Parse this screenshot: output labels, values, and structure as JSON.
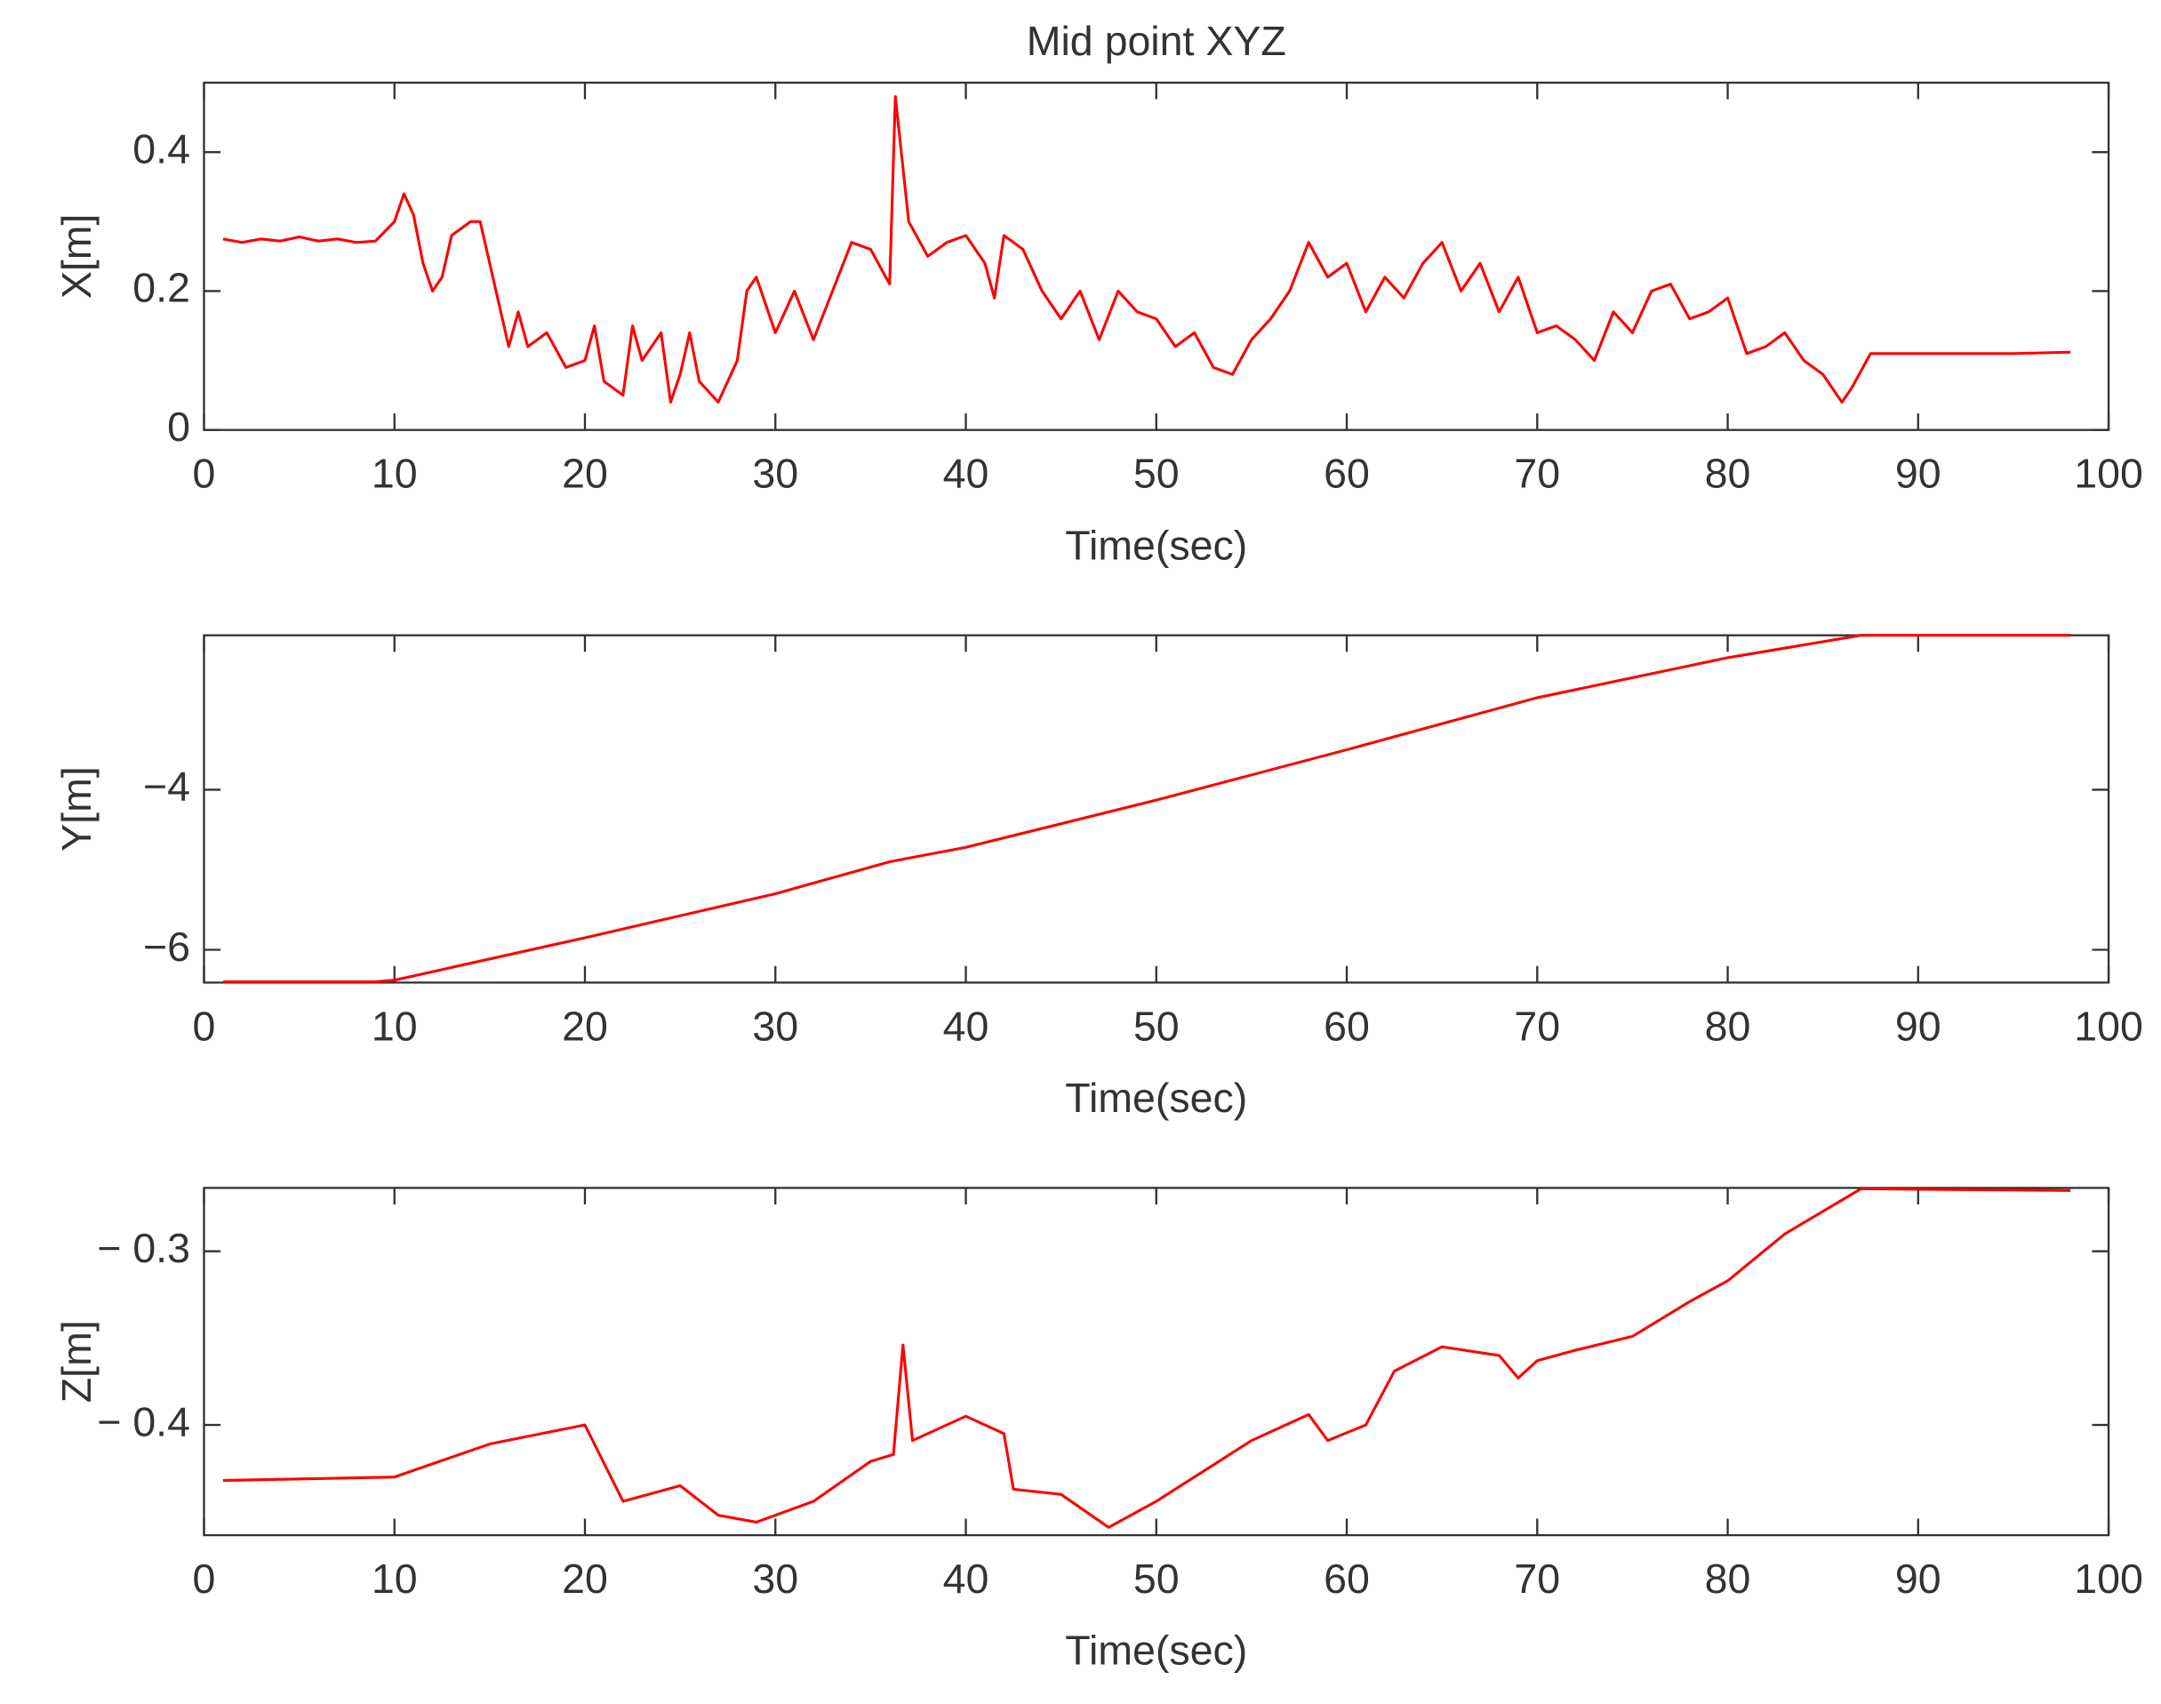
{
  "chart_data": [
    {
      "type": "line",
      "title": "Mid point XYZ",
      "xlabel": "Time(sec)",
      "ylabel": "X[m]",
      "x": [
        1,
        2,
        3,
        4,
        5,
        6,
        7,
        8,
        9,
        10,
        10.5,
        11,
        11.5,
        12,
        12.5,
        13,
        14,
        14.5,
        15,
        16,
        16.5,
        17,
        18,
        19,
        20,
        20.5,
        21,
        22,
        22.5,
        23,
        24,
        24.5,
        25,
        25.5,
        26,
        27,
        28,
        28.5,
        29,
        30,
        31,
        32,
        33,
        34,
        35,
        36,
        36.3,
        37,
        38,
        39,
        40,
        41,
        41.5,
        42,
        43,
        44,
        45,
        46,
        47,
        48,
        49,
        50,
        51,
        52,
        53,
        54,
        55,
        56,
        57,
        58,
        59,
        60,
        61,
        62,
        63,
        64,
        65,
        66,
        67,
        68,
        69,
        70,
        71,
        72,
        73,
        74,
        75,
        76,
        77,
        78,
        79,
        80,
        81,
        82,
        83,
        84,
        85,
        86,
        86.5,
        87.5,
        90,
        95,
        98
      ],
      "series": [
        {
          "color": "#ff0000",
          "values": [
            0.275,
            0.27,
            0.275,
            0.272,
            0.278,
            0.272,
            0.275,
            0.27,
            0.272,
            0.3,
            0.34,
            0.31,
            0.24,
            0.2,
            0.22,
            0.28,
            0.3,
            0.3,
            0.24,
            0.12,
            0.17,
            0.12,
            0.14,
            0.09,
            0.1,
            0.15,
            0.07,
            0.05,
            0.15,
            0.1,
            0.14,
            0.04,
            0.08,
            0.14,
            0.07,
            0.04,
            0.1,
            0.2,
            0.22,
            0.14,
            0.2,
            0.13,
            0.2,
            0.27,
            0.26,
            0.21,
            0.48,
            0.3,
            0.25,
            0.27,
            0.28,
            0.24,
            0.19,
            0.28,
            0.26,
            0.2,
            0.16,
            0.2,
            0.13,
            0.2,
            0.17,
            0.16,
            0.12,
            0.14,
            0.09,
            0.08,
            0.13,
            0.16,
            0.2,
            0.27,
            0.22,
            0.24,
            0.17,
            0.22,
            0.19,
            0.24,
            0.27,
            0.2,
            0.24,
            0.17,
            0.22,
            0.14,
            0.15,
            0.13,
            0.1,
            0.17,
            0.14,
            0.2,
            0.21,
            0.16,
            0.17,
            0.19,
            0.11,
            0.12,
            0.14,
            0.1,
            0.08,
            0.04,
            0.06,
            0.11,
            0.11,
            0.11,
            0.112
          ]
        }
      ],
      "xlim": [
        0,
        100
      ],
      "xticks": [
        0,
        10,
        20,
        30,
        40,
        50,
        60,
        70,
        80,
        90,
        100
      ],
      "ylim": [
        0,
        0.5
      ],
      "yticks": [
        0,
        0.2,
        0.4
      ]
    },
    {
      "type": "line",
      "xlabel": "Time(sec)",
      "ylabel": "Y[m]",
      "x": [
        1,
        9,
        10,
        20,
        30,
        36,
        40,
        50,
        60,
        70,
        80,
        87,
        98
      ],
      "series": [
        {
          "color": "#ff0000",
          "values": [
            -6.4,
            -6.4,
            -6.38,
            -5.85,
            -5.3,
            -4.9,
            -4.72,
            -4.13,
            -3.5,
            -2.85,
            -2.35,
            -2.07,
            -2.07
          ]
        }
      ],
      "xlim": [
        0,
        100
      ],
      "xticks": [
        0,
        10,
        20,
        30,
        40,
        50,
        60,
        70,
        80,
        90,
        100
      ],
      "ylim": [
        -6.41,
        -2.07
      ],
      "yticks": [
        {
          "value": -6,
          "label": "−6"
        },
        {
          "value": -4,
          "label": "−4"
        }
      ]
    },
    {
      "type": "line",
      "xlabel": "Time(sec)",
      "ylabel": "Z[m]",
      "x": [
        1,
        10,
        15,
        20,
        22,
        25,
        27,
        29,
        32,
        35,
        36.2,
        36.7,
        37.2,
        40,
        42,
        42.5,
        45,
        47.5,
        50,
        55,
        58,
        59,
        61,
        62.5,
        65,
        68,
        69,
        70,
        72,
        75,
        78,
        80,
        83,
        87,
        98
      ],
      "series": [
        {
          "color": "#ff0000",
          "values": [
            -0.432,
            -0.43,
            -0.411,
            -0.4,
            -0.444,
            -0.435,
            -0.452,
            -0.456,
            -0.444,
            -0.421,
            -0.417,
            -0.354,
            -0.409,
            -0.395,
            -0.405,
            -0.437,
            -0.44,
            -0.459,
            -0.444,
            -0.409,
            -0.394,
            -0.409,
            -0.4,
            -0.369,
            -0.355,
            -0.36,
            -0.373,
            -0.363,
            -0.357,
            -0.349,
            -0.329,
            -0.317,
            -0.29,
            -0.264,
            -0.265
          ]
        }
      ],
      "xlim": [
        0,
        100
      ],
      "xticks": [
        0,
        10,
        20,
        30,
        40,
        50,
        60,
        70,
        80,
        90,
        100
      ],
      "ylim": [
        -0.4635,
        -0.2635
      ],
      "yticks": [
        {
          "value": -0.4,
          "label": "− 0.4"
        },
        {
          "value": -0.3,
          "label": "− 0.3"
        }
      ]
    }
  ]
}
